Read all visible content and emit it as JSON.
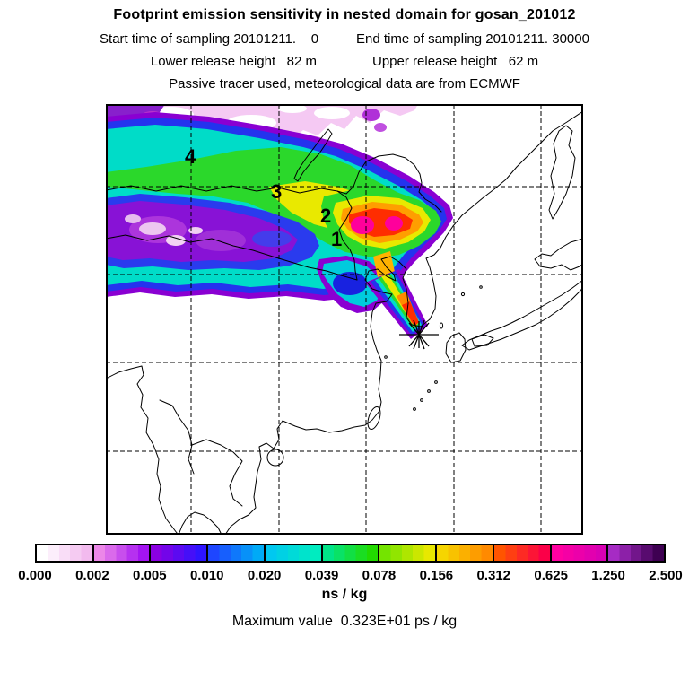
{
  "header": {
    "title": "Footprint emission sensitivity in nested domain for gosan_201012",
    "start_time": "Start time of sampling 20101211.    0",
    "end_time": "End time of sampling 20101211. 30000",
    "lower_release": "Lower release height   82 m",
    "upper_release": "Upper release height   62 m",
    "tracer_line": "Passive tracer used, meteorological data are from ECMWF"
  },
  "map": {
    "trajectory_labels": [
      {
        "text": "1"
      },
      {
        "text": "2"
      },
      {
        "text": "3"
      },
      {
        "text": "4"
      }
    ],
    "receptor_marker_icon": "star-burst"
  },
  "colorbar": {
    "labels": [
      "0.000",
      "0.002",
      "0.005",
      "0.010",
      "0.020",
      "0.039",
      "0.078",
      "0.156",
      "0.312",
      "0.625",
      "1.250",
      "2.500"
    ],
    "units": "ns / kg",
    "segments": [
      {
        "from": "#FFFFFF",
        "to": "#F2BAEE"
      },
      {
        "from": "#EC87E8",
        "to": "#A414F2"
      },
      {
        "from": "#8A00E2",
        "to": "#2E14FF"
      },
      {
        "from": "#1E46FF",
        "to": "#00AAF6"
      },
      {
        "from": "#00C8F0",
        "to": "#00ECC0"
      },
      {
        "from": "#00E488",
        "to": "#22DA00"
      },
      {
        "from": "#74E400",
        "to": "#E8E800"
      },
      {
        "from": "#F6D500",
        "to": "#FF8A00"
      },
      {
        "from": "#FF5400",
        "to": "#FB0048"
      },
      {
        "from": "#FF00A0",
        "to": "#D800B4"
      },
      {
        "from": "#A62BC4",
        "to": "#3E0052"
      }
    ]
  },
  "footer": {
    "max_line": "Maximum value  0.323E+01 ps / kg"
  }
}
